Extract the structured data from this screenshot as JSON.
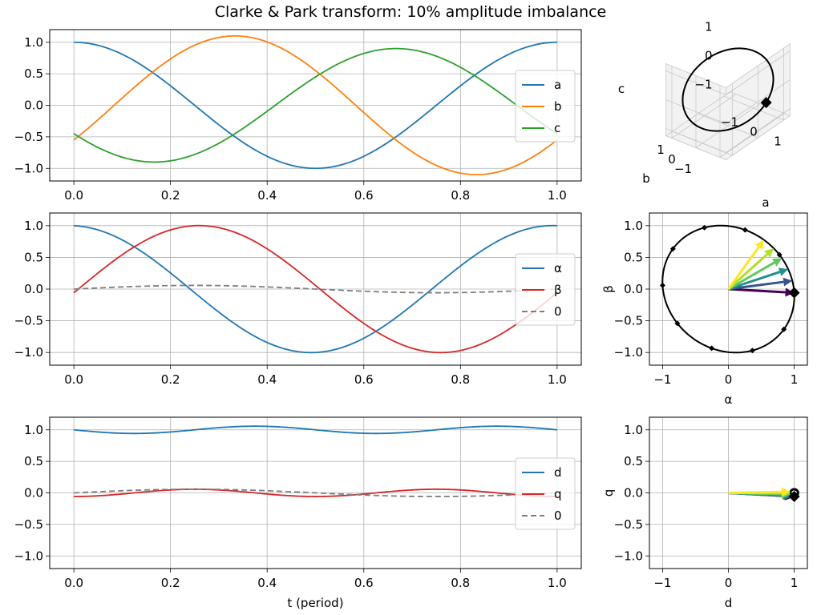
{
  "title": "Clarke & Park transform: 10% amplitude imbalance",
  "colors": {
    "a": "#1f77b4",
    "b": "#ff7f0e",
    "c": "#2ca02c",
    "alpha": "#1f77b4",
    "beta": "#d62728",
    "zero": "#7f7f7f",
    "d": "#1f77b4",
    "q": "#d62728",
    "grid": "#b0b0b0",
    "trace": "#000000",
    "phasor_palette": [
      "#440154",
      "#3b528b",
      "#21918c",
      "#5ec962",
      "#b5de2b",
      "#fde725"
    ]
  },
  "chart_data": [
    {
      "id": "abc-time",
      "type": "line",
      "xlim": [
        -0.05,
        1.05
      ],
      "ylim": [
        -1.2,
        1.2
      ],
      "xticks": [
        "0.0",
        "0.2",
        "0.4",
        "0.6",
        "0.8",
        "1.0"
      ],
      "yticks": [
        "1.0",
        "0.5",
        "0.0",
        "−0.5",
        "−1.0"
      ],
      "xlabel": "",
      "ylabel": "",
      "grid": true,
      "legend": "center-right",
      "series": [
        {
          "name": "a",
          "amplitude": 1.0,
          "phase_deg": 0
        },
        {
          "name": "b",
          "amplitude": 1.1,
          "phase_deg": -120
        },
        {
          "name": "c",
          "amplitude": 0.9,
          "phase_deg": 120
        }
      ]
    },
    {
      "id": "abc-3d",
      "type": "scatter",
      "zlabel": "c",
      "xlabel": "a",
      "ylabel": "b",
      "xticks": [
        "−1",
        "0",
        "1"
      ],
      "yticks": [
        "1",
        "0",
        "−1"
      ],
      "zticks": [
        "1",
        "0",
        "−1"
      ],
      "marker_at_t": 0.0
    },
    {
      "id": "clarke-time",
      "type": "line",
      "xlim": [
        -0.05,
        1.05
      ],
      "ylim": [
        -1.2,
        1.2
      ],
      "xticks": [
        "0.0",
        "0.2",
        "0.4",
        "0.6",
        "0.8",
        "1.0"
      ],
      "yticks": [
        "1.0",
        "0.5",
        "0.0",
        "−0.5",
        "−1.0"
      ],
      "xlabel": "",
      "ylabel": "",
      "grid": true,
      "legend": "center-right",
      "series": [
        {
          "name": "α",
          "style": "solid"
        },
        {
          "name": "β",
          "style": "solid"
        },
        {
          "name": "0",
          "style": "dashed"
        }
      ]
    },
    {
      "id": "clarke-xy",
      "type": "scatter",
      "xlim": [
        -1.2,
        1.2
      ],
      "ylim": [
        -1.2,
        1.2
      ],
      "xticks": [
        "−1",
        "0",
        "1"
      ],
      "yticks": [
        "1.0",
        "0.5",
        "0.0",
        "−0.5",
        "−1.0"
      ],
      "xlabel": "α",
      "ylabel": "β",
      "grid": true,
      "marker_times": [
        0,
        0.1,
        0.2,
        0.3,
        0.4,
        0.5,
        0.6,
        0.7,
        0.8,
        0.9
      ],
      "arrow_times": [
        0.0,
        0.03,
        0.06,
        0.09,
        0.12,
        0.15
      ]
    },
    {
      "id": "park-time",
      "type": "line",
      "xlim": [
        -0.05,
        1.05
      ],
      "ylim": [
        -1.2,
        1.2
      ],
      "xticks": [
        "0.0",
        "0.2",
        "0.4",
        "0.6",
        "0.8",
        "1.0"
      ],
      "yticks": [
        "1.0",
        "0.5",
        "0.0",
        "−0.5",
        "−1.0"
      ],
      "xlabel": "t (period)",
      "ylabel": "",
      "grid": true,
      "legend": "center-right",
      "series": [
        {
          "name": "d",
          "style": "solid"
        },
        {
          "name": "q",
          "style": "solid"
        },
        {
          "name": "0",
          "style": "dashed"
        }
      ]
    },
    {
      "id": "park-xy",
      "type": "scatter",
      "xlim": [
        -1.2,
        1.2
      ],
      "ylim": [
        -1.2,
        1.2
      ],
      "xticks": [
        "−1",
        "0",
        "1"
      ],
      "yticks": [
        "1.0",
        "0.5",
        "0.0",
        "−0.5",
        "−1.0"
      ],
      "xlabel": "d",
      "ylabel": "q",
      "grid": true,
      "arrow_times": [
        0.0,
        0.03,
        0.06,
        0.09,
        0.12,
        0.15
      ]
    }
  ]
}
